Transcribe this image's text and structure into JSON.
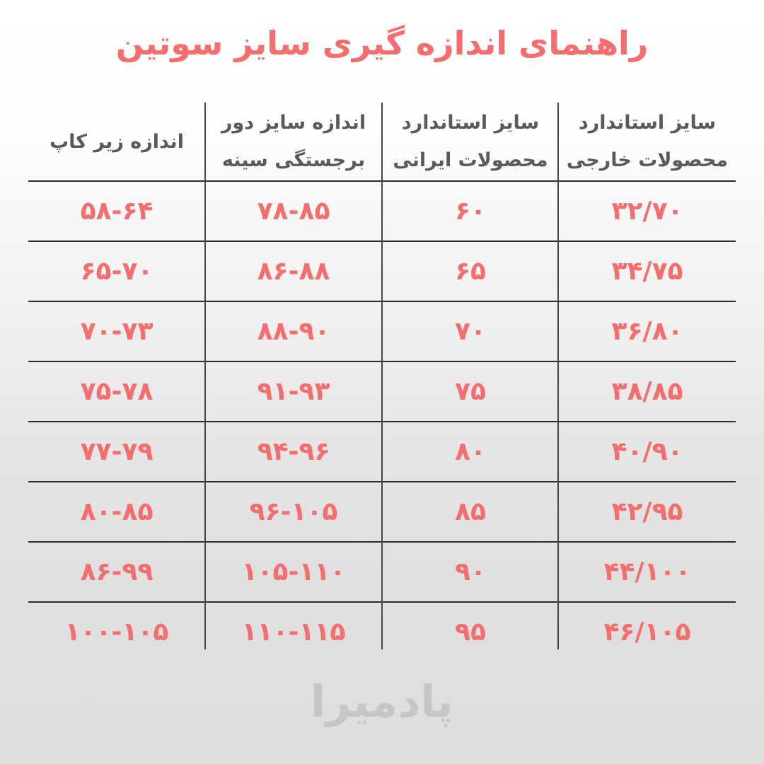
{
  "page": {
    "title": "راهنمای اندازه گیری سایز سوتین",
    "title_meaning": "Bra size measurement guide",
    "watermark": "پادمیرا"
  },
  "colors": {
    "accent": "#F76C6C",
    "header_text": "#5A5A5A",
    "row_line": "#2C2C2C",
    "column_line": "#454545",
    "watermark": "#C6C6C6",
    "background_top": "#FFFFFF",
    "background_bottom": "#DEDEDE"
  },
  "table": {
    "columns": [
      {
        "id": "foreign-standard",
        "line1": "سایز استاندارد",
        "line2": "محصولات خارجی"
      },
      {
        "id": "iranian-standard",
        "line1": "سایز استاندارد",
        "line2": "محصولات ایرانی"
      },
      {
        "id": "bust-circumference",
        "line1": "اندازه سایز دور",
        "line2": "برجستگی سینه"
      },
      {
        "id": "under-cup",
        "line1": "اندازه زیر کاپ",
        "line2": ""
      }
    ],
    "rows": [
      {
        "cells": [
          "۳۲/۷۰",
          "۶۰",
          "۷۸-۸۵",
          "۵۸-۶۴"
        ]
      },
      {
        "cells": [
          "۳۴/۷۵",
          "۶۵",
          "۸۶-۸۸",
          "۶۵-۷۰"
        ]
      },
      {
        "cells": [
          "۳۶/۸۰",
          "۷۰",
          "۸۸-۹۰",
          "۷۰-۷۳"
        ]
      },
      {
        "cells": [
          "۳۸/۸۵",
          "۷۵",
          "۹۱-۹۳",
          "۷۵-۷۸"
        ]
      },
      {
        "cells": [
          "۴۰/۹۰",
          "۸۰",
          "۹۴-۹۶",
          "۷۷-۷۹"
        ]
      },
      {
        "cells": [
          "۴۲/۹۵",
          "۸۵",
          "۹۶-۱۰۵",
          "۸۰-۸۵"
        ]
      },
      {
        "cells": [
          "۴۴/۱۰۰",
          "۹۰",
          "۱۰۵-۱۱۰",
          "۸۶-۹۹"
        ]
      },
      {
        "cells": [
          "۴۶/۱۰۵",
          "۹۵",
          "۱۱۰-۱۱۵",
          "۱۰۰-۱۰۵"
        ]
      }
    ]
  },
  "chart_data": {
    "type": "table",
    "title": "راهنمای اندازه گیری سایز سوتین",
    "columns_rtl_order": [
      "سایز استاندارد محصولات خارجی (foreign standard size)",
      "سایز استاندارد محصولات ایرانی (Iranian standard size)",
      "اندازه سایز دور برجستگی سینه (bust circumference, cm)",
      "اندازه زیر کاپ (under-cup measurement, cm)"
    ],
    "rows_latin": [
      [
        "32/70",
        "60",
        "78-85",
        "58-64"
      ],
      [
        "34/75",
        "65",
        "86-88",
        "65-70"
      ],
      [
        "36/80",
        "70",
        "88-90",
        "70-73"
      ],
      [
        "38/85",
        "75",
        "91-93",
        "75-78"
      ],
      [
        "40/90",
        "80",
        "94-96",
        "77-79"
      ],
      [
        "42/95",
        "85",
        "96-105",
        "80-85"
      ],
      [
        "44/100",
        "90",
        "105-110",
        "86-99"
      ],
      [
        "46/105",
        "95",
        "110-115",
        "100-105"
      ]
    ],
    "layout": "RTL table, 4 columns, header row + 8 data rows, horizontal separators dark, no outer border",
    "footer_watermark": "پادمیرا (Padmira brand logo, light gray)"
  }
}
